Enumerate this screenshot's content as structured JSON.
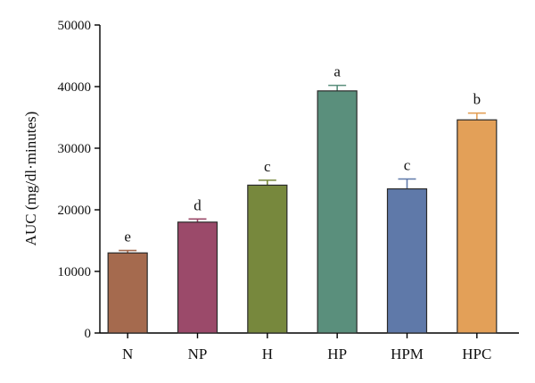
{
  "chart_data": {
    "type": "bar",
    "ylabel": "AUC (mg/dl·minutes)",
    "xlabel": "",
    "title": "",
    "ylim": [
      0,
      50000
    ],
    "yticks": [
      0,
      10000,
      20000,
      30000,
      40000,
      50000
    ],
    "grid": false,
    "categories": [
      "N",
      "NP",
      "H",
      "HP",
      "HPM",
      "HPC"
    ],
    "values": [
      13000,
      18000,
      24000,
      39300,
      23400,
      34600
    ],
    "errors": [
      400,
      500,
      800,
      900,
      1600,
      1100
    ],
    "significance": [
      "e",
      "d",
      "c",
      "a",
      "c",
      "b"
    ],
    "colors": [
      "#a56a4e",
      "#9b4a6a",
      "#77883d",
      "#5a8f7c",
      "#5f79a9",
      "#e3a058"
    ]
  }
}
